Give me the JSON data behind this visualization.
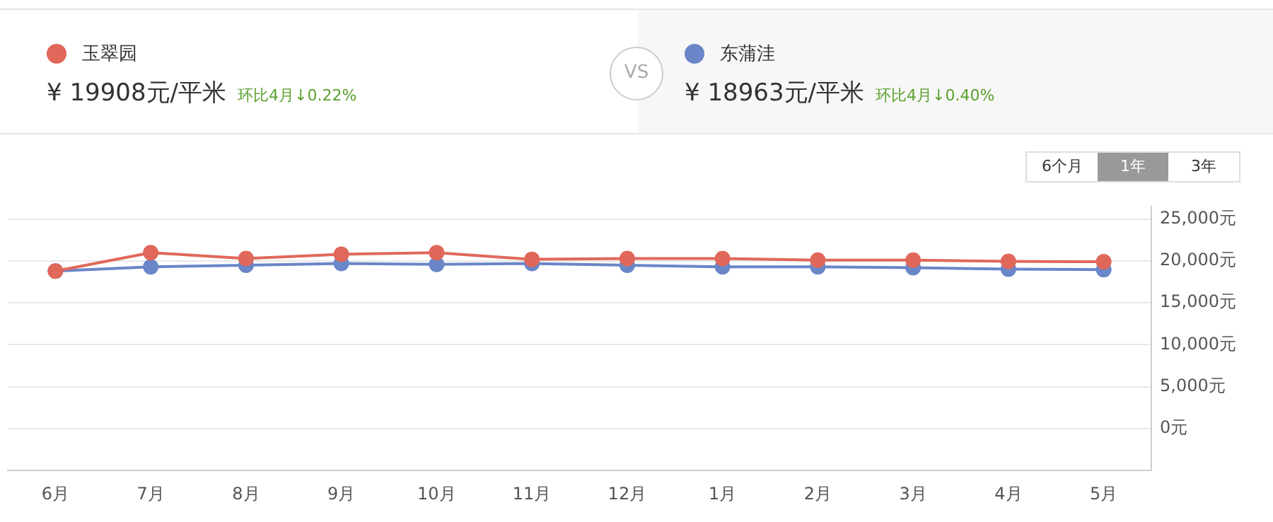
{
  "chart_data": {
    "type": "line",
    "categories": [
      "6月",
      "7月",
      "8月",
      "9月",
      "10月",
      "11月",
      "12月",
      "1月",
      "2月",
      "3月",
      "4月",
      "5月"
    ],
    "series": [
      {
        "name": "玉翠园",
        "color": "#e0685a",
        "values": [
          18800,
          21000,
          20300,
          20800,
          21000,
          20200,
          20300,
          20300,
          20100,
          20100,
          19952,
          19908
        ]
      },
      {
        "name": "东蒲洼",
        "color": "#6a86c8",
        "values": [
          18800,
          19300,
          19500,
          19700,
          19600,
          19700,
          19500,
          19300,
          19300,
          19200,
          19039,
          18963
        ]
      }
    ],
    "ylim": [
      -5000,
      26500
    ],
    "yticks": [
      {
        "value": 0,
        "label": "0元"
      },
      {
        "value": 5000,
        "label": "5,000元"
      },
      {
        "value": 10000,
        "label": "10,000元"
      },
      {
        "value": 15000,
        "label": "15,000元"
      },
      {
        "value": 20000,
        "label": "20,000元"
      },
      {
        "value": 25000,
        "label": "25,000元"
      }
    ],
    "grid": "y",
    "legend": "top",
    "marker": "circle",
    "line_style": "solid",
    "annotations": [
      "¥ 19908元/平米",
      "环比4月↓0.22%",
      "¥ 18963元/平米",
      "环比4月↓0.40%",
      "VS",
      "6个月",
      "1年",
      "3年"
    ]
  }
}
